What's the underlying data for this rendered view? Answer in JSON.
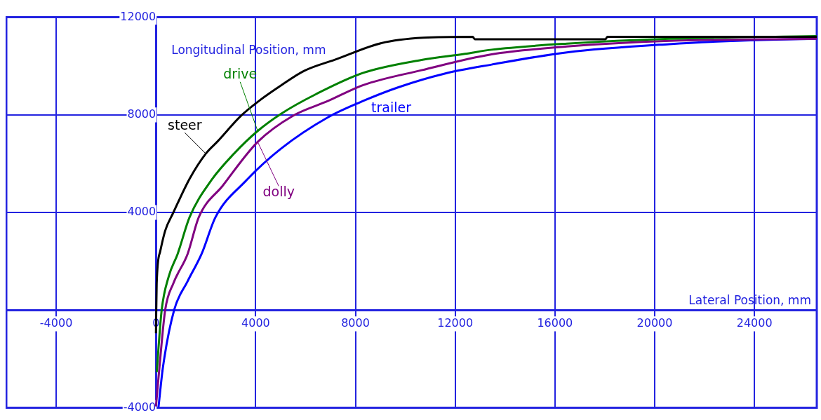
{
  "chart_data": {
    "type": "line",
    "xlabel": "Lateral Position, mm",
    "ylabel": "Longitudinal Position, mm",
    "xlim": [
      -6000,
      26500
    ],
    "ylim": [
      -4000,
      12000
    ],
    "xticks": [
      -4000,
      0,
      4000,
      8000,
      12000,
      16000,
      20000,
      24000
    ],
    "yticks": [
      -4000,
      {
        "value": 0,
        "label": null
      },
      4000,
      8000,
      12000
    ],
    "grid": true,
    "legend": false,
    "marker": "none",
    "line_style": "solid",
    "series": [
      {
        "name": "steer",
        "color": "#000000",
        "x": [
          0,
          30,
          170,
          370,
          700,
          1350,
          2000,
          2480,
          3410,
          4170,
          5010,
          5940,
          7180,
          9040,
          10730,
          12700,
          12790,
          18030,
          18100,
          26500
        ],
        "values": [
          -950,
          1100,
          2400,
          3250,
          4000,
          5380,
          6410,
          6920,
          7960,
          8600,
          9200,
          9800,
          10260,
          10940,
          11160,
          11200,
          11100,
          11100,
          11200,
          11200
        ]
      },
      {
        "name": "drive",
        "color": "#008000",
        "x": [
          30,
          230,
          510,
          870,
          1350,
          2200,
          3130,
          4080,
          5010,
          6420,
          8310,
          10650,
          12390,
          13460,
          16480,
          20590,
          26500
        ],
        "values": [
          -2550,
          0,
          1370,
          2300,
          3810,
          5290,
          6410,
          7340,
          8040,
          8850,
          9720,
          10250,
          10500,
          10670,
          10920,
          11120,
          11230
        ]
      },
      {
        "name": "dolly",
        "color": "#800080",
        "x": [
          0,
          140,
          370,
          700,
          1270,
          1720,
          2680,
          4080,
          5490,
          6900,
          8310,
          10650,
          13460,
          16480,
          20590,
          26500
        ],
        "values": [
          -3950,
          -2350,
          0,
          1100,
          2300,
          3810,
          5100,
          6890,
          7960,
          8570,
          9220,
          9830,
          10480,
          10800,
          11030,
          11120
        ]
      },
      {
        "name": "trailer",
        "color": "#0000ff",
        "x": [
          100,
          280,
          730,
          1270,
          1830,
          2390,
          3600,
          5010,
          6900,
          8310,
          9720,
          11580,
          13460,
          16480,
          20590,
          23460,
          26500
        ],
        "values": [
          -4000,
          -2350,
          0,
          1180,
          2300,
          3810,
          5290,
          6610,
          7900,
          8570,
          9130,
          9690,
          10060,
          10560,
          10900,
          11040,
          11120
        ]
      }
    ]
  }
}
